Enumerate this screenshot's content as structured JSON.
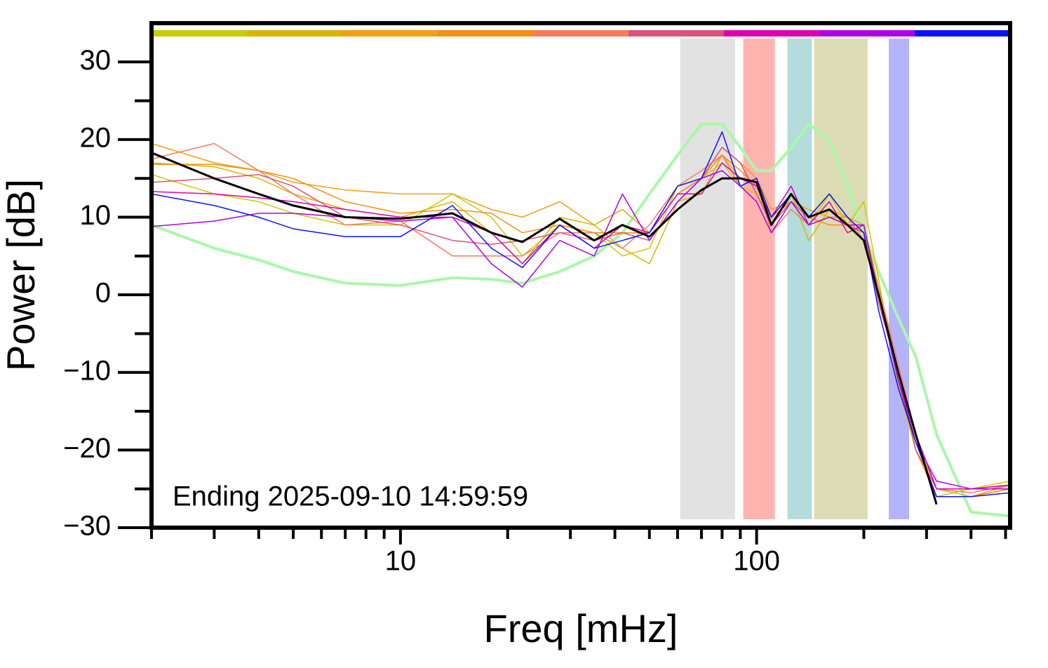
{
  "chart_data": {
    "type": "line",
    "xlabel": "Freq [mHz]",
    "ylabel": "Power [dB]",
    "annotation": "Ending 2025-09-10 14:59:59",
    "xscale": "log",
    "xlim": [
      2,
      515
    ],
    "ylim": [
      -30,
      35
    ],
    "xticks": [
      10,
      100
    ],
    "xminor": [
      2,
      3,
      4,
      5,
      6,
      7,
      8,
      9,
      20,
      30,
      40,
      50,
      60,
      70,
      80,
      90,
      200,
      300,
      400,
      500
    ],
    "yticks": [
      30,
      20,
      10,
      0,
      {
        "value": -10,
        "label": "−10"
      },
      {
        "value": -20,
        "label": "−20"
      },
      {
        "value": -30,
        "label": "−30"
      }
    ],
    "yminor": [
      25,
      15,
      5,
      -5,
      -15,
      -25
    ],
    "bands": [
      {
        "x": [
          61,
          87
        ],
        "color": "#e2e2e2"
      },
      {
        "x": [
          91.7,
          112.5
        ],
        "color": "#ffb4b0"
      },
      {
        "x": [
          122,
          143
        ],
        "color": "#b4dcdc"
      },
      {
        "x": [
          145,
          205
        ],
        "color": "#dcdcb4"
      },
      {
        "x": [
          235,
          268
        ],
        "color": "#b4b4fa"
      }
    ],
    "colorbar": [
      "#c8cc00",
      "#dbb400",
      "#f0a010",
      "#f59010",
      "#fa7a60",
      "#e05078",
      "#e000b0",
      "#b000e8",
      "#0a14ff"
    ],
    "x": [
      2,
      3,
      4,
      5,
      7,
      10,
      14,
      18,
      22,
      28,
      35,
      42,
      50,
      60,
      70,
      80,
      90,
      100,
      110,
      125,
      140,
      160,
      180,
      200,
      220,
      250,
      280,
      320,
      400,
      515
    ],
    "series": [
      {
        "color": "#a8f8a8",
        "width": 4,
        "values": [
          9,
          6,
          4.5,
          3,
          1.5,
          1.2,
          2.2,
          2,
          1.5,
          3,
          5,
          8,
          13,
          18,
          22,
          22,
          19,
          16,
          16,
          19,
          22,
          20,
          14,
          8,
          3,
          -3,
          -8,
          -18,
          -28,
          -28.5
        ]
      },
      {
        "color": "#c8cc00",
        "width": 1.5,
        "values": [
          15.5,
          13,
          12,
          10.5,
          9,
          9,
          13,
          10,
          5,
          9,
          8,
          5,
          6,
          14,
          15,
          17,
          14,
          13,
          10,
          12,
          9,
          13,
          9,
          12,
          2,
          -12,
          -20,
          -26,
          -25,
          -24
        ]
      },
      {
        "color": "#dbb400",
        "width": 1.5,
        "values": [
          17,
          16.5,
          15,
          13,
          11,
          10,
          12,
          8,
          4,
          10,
          9,
          6,
          4,
          12,
          13,
          18,
          15,
          14,
          9,
          13,
          7,
          11,
          10,
          9,
          1,
          -10,
          -19,
          -25,
          -26,
          -25
        ]
      },
      {
        "color": "#f0a010",
        "width": 1.5,
        "values": [
          19.5,
          17,
          16,
          14.5,
          13.5,
          13,
          13,
          11,
          10,
          12,
          9,
          11,
          8,
          13,
          15,
          19,
          17,
          15,
          11,
          12,
          11,
          10,
          9,
          8,
          1,
          -11,
          -20,
          -26,
          -26,
          -24.5
        ]
      },
      {
        "color": "#f59010",
        "width": 1.5,
        "values": [
          16.8,
          16.8,
          16,
          15,
          12,
          10.5,
          11,
          10.5,
          8,
          9,
          8,
          8,
          8,
          13,
          15,
          18,
          16,
          14,
          10,
          12,
          10,
          9,
          9,
          8,
          0,
          -11,
          -19,
          -26,
          -26,
          -25
        ]
      },
      {
        "color": "#fa7a60",
        "width": 1.5,
        "values": [
          17.5,
          19.5,
          16,
          13,
          9,
          9.5,
          5,
          5,
          5,
          8,
          8,
          6,
          9,
          14,
          16,
          18,
          14,
          15,
          8,
          11,
          9,
          10,
          10,
          7,
          1,
          -9,
          -18,
          -25,
          -25.5,
          -24.5
        ]
      },
      {
        "color": "#e05078",
        "width": 1.5,
        "values": [
          14.5,
          15,
          15.5,
          14,
          10,
          9,
          7,
          6.5,
          7,
          8,
          7,
          8,
          7,
          12,
          15,
          19,
          17,
          13,
          9,
          12,
          10,
          11,
          9,
          8,
          -1,
          -10,
          -20,
          -25,
          -25,
          -24.5
        ]
      },
      {
        "color": "#e000b0",
        "width": 1.5,
        "values": [
          13.3,
          13,
          12.5,
          12,
          11,
          10,
          10,
          8,
          4,
          9,
          6,
          9,
          8,
          13,
          13,
          17,
          15,
          14,
          10,
          14,
          9,
          12,
          8,
          9,
          0,
          -11,
          -18,
          -25,
          -25,
          -24.5
        ]
      },
      {
        "color": "#b000e8",
        "width": 1.5,
        "values": [
          8.8,
          9.5,
          10.5,
          10.5,
          10,
          9.5,
          10,
          4,
          1,
          7,
          5,
          13,
          7,
          12,
          15,
          16,
          14,
          12,
          8,
          12,
          9,
          10,
          9,
          9,
          0,
          -11,
          -19,
          -24,
          -25,
          -25
        ]
      },
      {
        "color": "#0a14ff",
        "width": 1.5,
        "values": [
          13,
          11.5,
          10,
          8.5,
          7.5,
          7.5,
          11.5,
          6,
          3.5,
          9,
          6,
          7,
          8,
          14,
          15,
          21,
          14,
          15,
          10,
          13,
          10,
          13,
          10,
          8,
          -2,
          -12,
          -19,
          -26,
          -26,
          -25.5
        ]
      },
      {
        "color": "#000000",
        "width": 3,
        "values": [
          18.3,
          15,
          13,
          11.5,
          10,
          9.8,
          10.5,
          8,
          6.8,
          9.8,
          7,
          9,
          7.5,
          11,
          13.5,
          15,
          15,
          14.5,
          9,
          13,
          10,
          11,
          9,
          7,
          0,
          -10,
          -18,
          -27,
          null,
          null
        ]
      }
    ]
  }
}
